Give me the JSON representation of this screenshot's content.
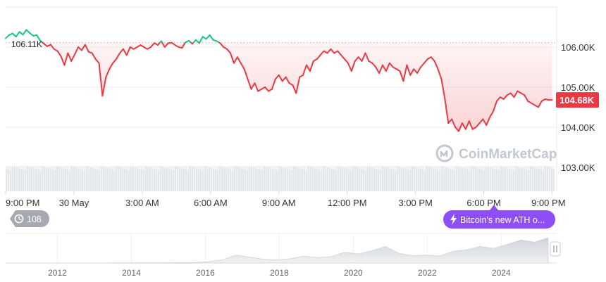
{
  "chart_data": {
    "type": "line",
    "title": "",
    "xlabel": "",
    "ylabel": "",
    "y_ticks": [
      "106.00K",
      "105.00K",
      "104.00K",
      "103.00K"
    ],
    "y_tick_values": [
      106000,
      105000,
      104000,
      103000
    ],
    "ylim": [
      102400,
      107000
    ],
    "x_ticks": [
      "9:00 PM",
      "30 May",
      "3:00 AM",
      "6:00 AM",
      "9:00 AM",
      "12:00 PM",
      "3:00 PM",
      "6:00 PM",
      "9:00 PM"
    ],
    "x_tick_hours": [
      0,
      3,
      6,
      9,
      12,
      15,
      18,
      21,
      24
    ],
    "xlim_hours": [
      0,
      24.2
    ],
    "reference_price": 106110,
    "reference_label": "106.11K",
    "current_price": 104680,
    "current_label": "104.68K",
    "grid": true,
    "series": [
      {
        "values": [
          106220,
          106300,
          106340,
          106260,
          106380,
          106310,
          106430,
          106350,
          106280,
          106300,
          106160,
          106090,
          106020,
          106060,
          105950,
          105900,
          105770,
          105550,
          105850,
          105650,
          105820,
          106000,
          105920,
          106060,
          105880,
          105850,
          105700,
          105600,
          104780,
          105250,
          105450,
          105600,
          105700,
          105850,
          105950,
          105800,
          106000,
          105950,
          106000,
          106050,
          106000,
          105950,
          106000,
          106100,
          106050,
          106150,
          106000,
          106100,
          106110,
          106050,
          106000,
          105980,
          106120,
          106160,
          106080,
          106180,
          106100,
          106260,
          106200,
          106300,
          106180,
          106150,
          106100,
          106000,
          105950,
          105850,
          105600,
          105750,
          105600,
          105450,
          105200,
          104950,
          105100,
          104900,
          104950,
          105000,
          104900,
          104950,
          105200,
          105300,
          105150,
          105250,
          105100,
          105050,
          104850,
          105250,
          105300,
          105550,
          105400,
          105650,
          105700,
          105800,
          105900,
          105850,
          105950,
          105850,
          105900,
          105800,
          105700,
          105600,
          105400,
          105650,
          105750,
          105650,
          105850,
          105650,
          105600,
          105500,
          105350,
          105550,
          105400,
          105600,
          105500,
          105450,
          105400,
          105150,
          105550,
          105300,
          105450,
          105350,
          105500,
          105600,
          105700,
          105750,
          105650,
          105450,
          105200,
          104700,
          104100,
          104200,
          104000,
          103900,
          104100,
          103950,
          104150,
          103950,
          104000,
          104100,
          104200,
          104050,
          104250,
          104400,
          104650,
          104750,
          104700,
          104800,
          104850,
          104750,
          104900,
          104850,
          104800,
          104650,
          104600,
          104550,
          104500,
          104650,
          104700,
          104680,
          104680
        ],
        "colors": {
          "up": "#16c784",
          "down": "#ea3943"
        }
      }
    ],
    "volume_label": "",
    "navigator": {
      "x_ticks": [
        "2012",
        "2014",
        "2016",
        "2018",
        "2020",
        "2022",
        "2024"
      ],
      "years": [
        2012,
        2014,
        2016,
        2018,
        2020,
        2022,
        2024
      ],
      "xlim_years": [
        2010.6,
        2025.5
      ],
      "area_values": [
        0,
        0,
        0,
        0,
        0,
        0,
        0,
        0,
        0.005,
        0.006,
        0.008,
        0.01,
        0.012,
        0.015,
        0.02,
        0.05,
        0.12,
        0.3,
        0.22,
        0.14,
        0.12,
        0.16,
        0.26,
        0.2,
        0.24,
        0.4,
        0.34,
        0.46,
        0.62,
        0.36,
        0.28,
        0.3,
        0.26,
        0.44,
        0.5,
        0.62,
        0.55,
        0.7,
        0.86,
        0.78,
        0.95
      ]
    }
  },
  "ui": {
    "history_count": "108",
    "event_label": "Bitcoin's new ATH o...",
    "watermark": "CoinMarketCap",
    "colors": {
      "accent_purple": "#8e4ef6",
      "badge_red": "#ea3943",
      "gray_badge": "#a5a9b0"
    }
  }
}
